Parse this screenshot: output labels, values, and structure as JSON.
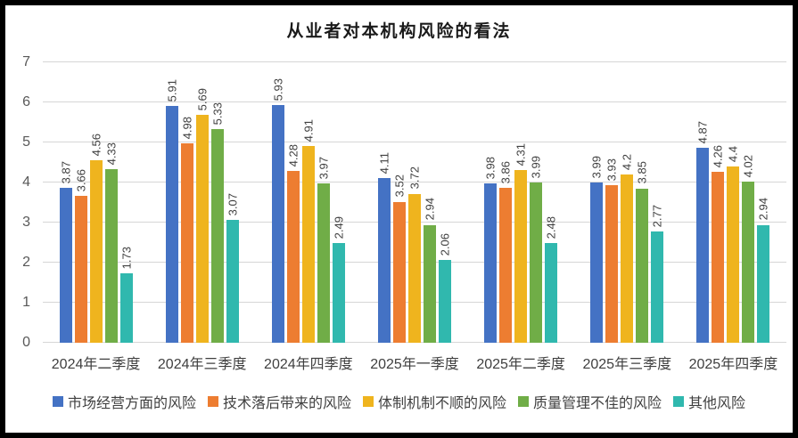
{
  "chart_data": {
    "type": "bar",
    "title": "从业者对本机构风险的看法",
    "categories": [
      "2024年二季度",
      "2024年三季度",
      "2024年四季度",
      "2025年一季度",
      "2025年二季度",
      "2025年三季度",
      "2025年四季度"
    ],
    "series": [
      {
        "name": "市场经营方面的风险",
        "color": "#4472C4",
        "values": [
          3.87,
          5.91,
          5.93,
          4.11,
          3.98,
          3.99,
          4.87
        ]
      },
      {
        "name": "技术落后带来的风险",
        "color": "#ED7D31",
        "values": [
          3.66,
          4.98,
          4.28,
          3.52,
          3.86,
          3.93,
          4.26
        ]
      },
      {
        "name": "体制机制不顺的风险",
        "color": "#EFB41E",
        "values": [
          4.56,
          5.69,
          4.91,
          3.72,
          4.31,
          4.2,
          4.4
        ]
      },
      {
        "name": "质量管理不佳的风险",
        "color": "#70AD47",
        "values": [
          4.33,
          5.33,
          3.97,
          2.94,
          3.99,
          3.85,
          4.02
        ]
      },
      {
        "name": "其他风险",
        "color": "#30B8AE",
        "values": [
          1.73,
          3.07,
          2.49,
          2.06,
          2.48,
          2.77,
          2.94
        ]
      }
    ],
    "xlabel": "",
    "ylabel": "",
    "ylim": [
      0,
      7
    ],
    "y_ticks": [
      "0",
      "1",
      "2",
      "3",
      "4",
      "5",
      "6",
      "7"
    ],
    "grid": "horizontal",
    "gridline_color": "#D6D6D6",
    "legend_position": "bottom",
    "data_labels": "rotated-vertical",
    "data_label_color": "#404040",
    "axis_tick_color": "#595959",
    "frame_border_color": "#000000"
  }
}
